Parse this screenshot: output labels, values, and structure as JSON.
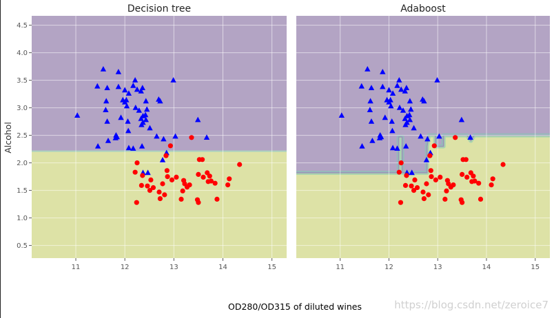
{
  "figure": {
    "xlabel": "OD280/OD315 of diluted wines",
    "ylabel": "Alcohol",
    "watermark": "https://blog.csdn.net/zeroice7"
  },
  "chart_data": [
    {
      "type": "scatter",
      "title": "Decision tree",
      "xlim": [
        10.1,
        15.3
      ],
      "ylim": [
        0.27,
        4.67
      ],
      "x_ticks": [
        11,
        12,
        13,
        14,
        15
      ],
      "y_ticks": [
        0.5,
        1.0,
        1.5,
        2.0,
        2.5,
        3.0,
        3.5,
        4.0,
        4.5
      ],
      "grid": true,
      "regions": [
        {
          "class": 0,
          "color": "#b3a4c4",
          "y_from": 2.2,
          "y_to": 4.67
        },
        {
          "class": 1,
          "color": "#dde2a6",
          "y_from": 0.27,
          "y_to": 2.2
        }
      ]
    },
    {
      "type": "scatter",
      "title": "Adaboost",
      "xlim": [
        10.1,
        15.3
      ],
      "ylim": [
        0.27,
        4.67
      ],
      "x_ticks": [
        11,
        12,
        13,
        14,
        15
      ],
      "y_ticks": [],
      "grid": true,
      "boundary": [
        [
          10.1,
          1.82
        ],
        [
          12.2,
          1.82
        ],
        [
          12.2,
          2.47
        ],
        [
          12.27,
          2.47
        ],
        [
          12.27,
          1.82
        ],
        [
          12.78,
          1.82
        ],
        [
          12.78,
          2.3
        ],
        [
          12.82,
          2.5
        ],
        [
          12.95,
          2.5
        ],
        [
          12.95,
          2.3
        ],
        [
          13.12,
          2.3
        ],
        [
          13.12,
          2.5
        ],
        [
          13.6,
          2.5
        ],
        [
          13.68,
          2.4
        ],
        [
          13.75,
          2.5
        ],
        [
          15.3,
          2.5
        ]
      ],
      "series": [
        {
          "class": 0,
          "marker": "triangle",
          "color": "#0000ff",
          "points": [
            [
              11.03,
              2.86
            ],
            [
              11.44,
              3.39
            ],
            [
              11.45,
              2.3
            ],
            [
              11.56,
              3.7
            ],
            [
              11.61,
              2.96
            ],
            [
              11.62,
              3.12
            ],
            [
              11.64,
              3.36
            ],
            [
              11.64,
              2.75
            ],
            [
              11.66,
              2.4
            ],
            [
              11.81,
              2.45
            ],
            [
              11.82,
              2.5
            ],
            [
              11.84,
              2.47
            ],
            [
              11.87,
              3.38
            ],
            [
              11.87,
              3.65
            ],
            [
              11.92,
              2.82
            ],
            [
              11.96,
              3.14
            ],
            [
              12.0,
              3.32
            ],
            [
              12.0,
              3.1
            ],
            [
              12.03,
              3.14
            ],
            [
              12.04,
              3.03
            ],
            [
              12.06,
              2.75
            ],
            [
              12.07,
              2.58
            ],
            [
              12.08,
              2.27
            ],
            [
              12.08,
              3.26
            ],
            [
              12.17,
              3.4
            ],
            [
              12.17,
              2.26
            ],
            [
              12.21,
              3.5
            ],
            [
              12.22,
              3.0
            ],
            [
              12.25,
              3.33
            ],
            [
              12.29,
              2.95
            ],
            [
              12.33,
              3.3
            ],
            [
              12.33,
              2.8
            ],
            [
              12.34,
              2.69
            ],
            [
              12.35,
              2.3
            ],
            [
              12.36,
              3.36
            ],
            [
              12.37,
              2.73
            ],
            [
              12.37,
              2.85
            ],
            [
              12.37,
              1.82
            ],
            [
              12.42,
              2.87
            ],
            [
              12.43,
              2.78
            ],
            [
              12.43,
              3.12
            ],
            [
              12.45,
              2.97
            ],
            [
              12.47,
              1.82
            ],
            [
              12.51,
              2.63
            ],
            [
              12.65,
              2.48
            ],
            [
              12.69,
              3.15
            ],
            [
              12.72,
              3.12
            ],
            [
              12.77,
              2.05
            ],
            [
              12.79,
              2.43
            ],
            [
              12.85,
              2.18
            ],
            [
              12.99,
              3.5
            ],
            [
              13.03,
              2.48
            ],
            [
              13.49,
              2.78
            ],
            [
              13.67,
              2.46
            ]
          ]
        },
        {
          "class": 1,
          "marker": "circle",
          "color": "#ff0000",
          "points": [
            [
              12.21,
              1.83
            ],
            [
              12.24,
              1.28
            ],
            [
              12.25,
              2.0
            ],
            [
              12.34,
              1.59
            ],
            [
              12.36,
              1.77
            ],
            [
              12.46,
              1.58
            ],
            [
              12.51,
              1.5
            ],
            [
              12.53,
              1.69
            ],
            [
              12.58,
              1.55
            ],
            [
              12.7,
              1.47
            ],
            [
              12.72,
              1.35
            ],
            [
              12.77,
              1.62
            ],
            [
              12.81,
              1.42
            ],
            [
              12.84,
              2.13
            ],
            [
              12.86,
              1.86
            ],
            [
              12.87,
              1.75
            ],
            [
              12.93,
              2.31
            ],
            [
              12.96,
              1.69
            ],
            [
              13.05,
              1.74
            ],
            [
              13.15,
              1.34
            ],
            [
              13.18,
              1.49
            ],
            [
              13.2,
              1.68
            ],
            [
              13.22,
              1.62
            ],
            [
              13.27,
              1.56
            ],
            [
              13.32,
              1.6
            ],
            [
              13.36,
              2.46
            ],
            [
              13.48,
              1.33
            ],
            [
              13.5,
              1.79
            ],
            [
              13.5,
              1.28
            ],
            [
              13.52,
              2.06
            ],
            [
              13.58,
              2.06
            ],
            [
              13.6,
              1.74
            ],
            [
              13.68,
              1.82
            ],
            [
              13.7,
              1.66
            ],
            [
              13.73,
              1.76
            ],
            [
              13.76,
              1.67
            ],
            [
              13.84,
              1.63
            ],
            [
              13.88,
              1.34
            ],
            [
              14.1,
              1.6
            ],
            [
              14.13,
              1.71
            ],
            [
              14.34,
              1.97
            ]
          ]
        }
      ]
    }
  ]
}
